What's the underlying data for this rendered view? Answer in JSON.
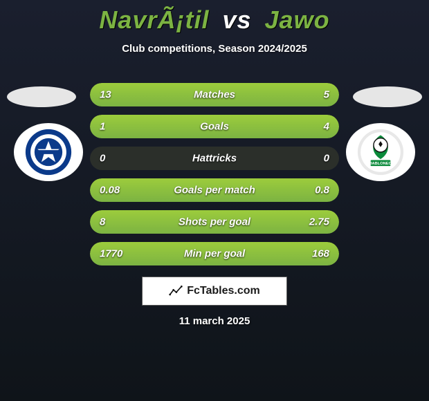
{
  "title": {
    "player1": "NavrÃ¡til",
    "vs": "vs",
    "player2": "Jawo"
  },
  "subtitle": "Club competitions, Season 2024/2025",
  "logos": {
    "left_colors": {
      "ring": "#0b3a8a",
      "inner": "#ffffff",
      "accent": "#0b3a8a"
    },
    "right_colors": {
      "ring": "#ffffff",
      "inner": "#ffffff",
      "accent": "#0a8a3a",
      "ball": "#111111"
    }
  },
  "bars": {
    "track_color": "#2b2f2a",
    "fill_color": "#7cb342",
    "text_color": "#ffffff",
    "rows": [
      {
        "label": "Matches",
        "left_val": "13",
        "right_val": "5",
        "left_frac": 0.72,
        "right_frac": 0.28
      },
      {
        "label": "Goals",
        "left_val": "1",
        "right_val": "4",
        "left_frac": 0.2,
        "right_frac": 0.8
      },
      {
        "label": "Hattricks",
        "left_val": "0",
        "right_val": "0",
        "left_frac": 0.0,
        "right_frac": 0.0
      },
      {
        "label": "Goals per match",
        "left_val": "0.08",
        "right_val": "0.8",
        "left_frac": 0.09,
        "right_frac": 0.91
      },
      {
        "label": "Shots per goal",
        "left_val": "8",
        "right_val": "2.75",
        "left_frac": 0.74,
        "right_frac": 0.26
      },
      {
        "label": "Min per goal",
        "left_val": "1770",
        "right_val": "168",
        "left_frac": 0.91,
        "right_frac": 0.09
      }
    ]
  },
  "footer": {
    "site": "FcTables.com",
    "date": "11 march 2025"
  },
  "background": {
    "from": "#1a1f2e",
    "to": "#0f1419"
  }
}
